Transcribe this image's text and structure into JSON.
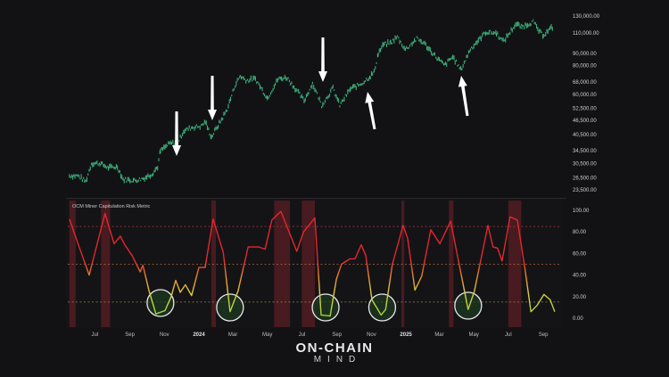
{
  "chart_data": [
    {
      "type": "line",
      "panel": "price",
      "scale": "log",
      "ylim": [
        23500,
        130000
      ],
      "xlim": [
        "2023-05-15",
        "2025-09-22"
      ],
      "y_ticks": [
        "130,000.00",
        "110,000.00",
        "90,000.00",
        "80,000.00",
        "68,000.00",
        "60,000.00",
        "52,500.00",
        "46,500.00",
        "40,500.00",
        "34,500.00",
        "30,500.00",
        "26,500.00",
        "23,500.00"
      ],
      "y_tick_values": [
        130000,
        110000,
        90000,
        80000,
        68000,
        60000,
        52500,
        46500,
        40500,
        34500,
        30500,
        26500,
        23500
      ],
      "color": "#3fae7a",
      "points": [
        [
          "2023-05-17",
          27000
        ],
        [
          "2023-06-01",
          27000
        ],
        [
          "2023-06-15",
          25500
        ],
        [
          "2023-06-25",
          30500
        ],
        [
          "2023-07-10",
          30500
        ],
        [
          "2023-07-25",
          29200
        ],
        [
          "2023-08-10",
          29500
        ],
        [
          "2023-08-20",
          26000
        ],
        [
          "2023-09-10",
          25800
        ],
        [
          "2023-09-25",
          26300
        ],
        [
          "2023-10-10",
          27500
        ],
        [
          "2023-10-20",
          29500
        ],
        [
          "2023-10-25",
          34500
        ],
        [
          "2023-11-10",
          37000
        ],
        [
          "2023-11-25",
          37500
        ],
        [
          "2023-12-05",
          42000
        ],
        [
          "2023-12-20",
          43500
        ],
        [
          "2024-01-05",
          44000
        ],
        [
          "2024-01-12",
          46000
        ],
        [
          "2024-01-23",
          39500
        ],
        [
          "2024-02-10",
          47000
        ],
        [
          "2024-02-20",
          52000
        ],
        [
          "2024-03-05",
          66000
        ],
        [
          "2024-03-14",
          72000
        ],
        [
          "2024-03-25",
          69000
        ],
        [
          "2024-04-10",
          70000
        ],
        [
          "2024-04-20",
          64000
        ],
        [
          "2024-05-01",
          58000
        ],
        [
          "2024-05-20",
          70000
        ],
        [
          "2024-06-05",
          71000
        ],
        [
          "2024-06-25",
          61000
        ],
        [
          "2024-07-05",
          56500
        ],
        [
          "2024-07-20",
          67000
        ],
        [
          "2024-08-05",
          54000
        ],
        [
          "2024-08-25",
          64000
        ],
        [
          "2024-09-06",
          54000
        ],
        [
          "2024-09-25",
          63500
        ],
        [
          "2024-10-15",
          67000
        ],
        [
          "2024-10-30",
          72000
        ],
        [
          "2024-11-06",
          75000
        ],
        [
          "2024-11-13",
          90000
        ],
        [
          "2024-11-22",
          98000
        ],
        [
          "2024-12-05",
          100000
        ],
        [
          "2024-12-17",
          106000
        ],
        [
          "2024-12-31",
          93500
        ],
        [
          "2025-01-20",
          104000
        ],
        [
          "2025-02-01",
          100000
        ],
        [
          "2025-02-25",
          86000
        ],
        [
          "2025-03-10",
          80000
        ],
        [
          "2025-03-25",
          87000
        ],
        [
          "2025-04-08",
          76500
        ],
        [
          "2025-04-25",
          94000
        ],
        [
          "2025-05-10",
          103000
        ],
        [
          "2025-05-22",
          111000
        ],
        [
          "2025-06-10",
          110000
        ],
        [
          "2025-06-22",
          101000
        ],
        [
          "2025-07-14",
          120000
        ],
        [
          "2025-07-25",
          117000
        ],
        [
          "2025-08-14",
          123000
        ],
        [
          "2025-08-25",
          111000
        ],
        [
          "2025-09-01",
          108000
        ],
        [
          "2025-09-18",
          117000
        ]
      ],
      "annotations": {
        "arrows": 5,
        "color": "#ffffff"
      }
    },
    {
      "type": "line",
      "panel": "metric",
      "title": "OCM Miner Capitulation Risk Metric",
      "ylim": [
        0,
        100
      ],
      "y_ticks": [
        "100.00",
        "80.00",
        "60.00",
        "40.00",
        "20.00",
        "0.00"
      ],
      "y_tick_values": [
        100,
        80,
        60,
        40,
        20,
        0
      ],
      "thresholds": [
        {
          "value": 85,
          "color": "#b0353a"
        },
        {
          "value": 50,
          "color": "#b06a3a"
        },
        {
          "value": 15,
          "color": "#8a8a55"
        }
      ],
      "colors": {
        "high": "#e3262c",
        "mid": "#ea8a2a",
        "low_mid": "#d9d23a",
        "low": "#9fd23a"
      },
      "x_ticks": [
        {
          "label": "Jul",
          "date": "2023-07-01"
        },
        {
          "label": "Sep",
          "date": "2023-09-01"
        },
        {
          "label": "Nov",
          "date": "2023-11-01"
        },
        {
          "label": "2024",
          "date": "2024-01-01",
          "bold": true
        },
        {
          "label": "Mar",
          "date": "2024-03-01"
        },
        {
          "label": "May",
          "date": "2024-05-01"
        },
        {
          "label": "Jul",
          "date": "2024-07-01"
        },
        {
          "label": "Sep",
          "date": "2024-09-01"
        },
        {
          "label": "Nov",
          "date": "2024-11-01"
        },
        {
          "label": "2025",
          "date": "2025-01-01",
          "bold": true
        },
        {
          "label": "Mar",
          "date": "2025-03-01"
        },
        {
          "label": "May",
          "date": "2025-05-01"
        },
        {
          "label": "Jul",
          "date": "2025-07-01"
        },
        {
          "label": "Sep",
          "date": "2025-09-01"
        }
      ],
      "points": [
        [
          "2023-05-17",
          92
        ],
        [
          "2023-06-02",
          68
        ],
        [
          "2023-06-21",
          40
        ],
        [
          "2023-07-19",
          97
        ],
        [
          "2023-08-04",
          69
        ],
        [
          "2023-08-15",
          76
        ],
        [
          "2023-08-23",
          68
        ],
        [
          "2023-09-05",
          58
        ],
        [
          "2023-09-19",
          43
        ],
        [
          "2023-09-24",
          49
        ],
        [
          "2023-10-05",
          25
        ],
        [
          "2023-10-17",
          4
        ],
        [
          "2023-11-02",
          7
        ],
        [
          "2023-11-13",
          20
        ],
        [
          "2023-11-21",
          35
        ],
        [
          "2023-11-29",
          24
        ],
        [
          "2023-12-08",
          31
        ],
        [
          "2023-12-19",
          21
        ],
        [
          "2024-01-01",
          47
        ],
        [
          "2024-01-12",
          47
        ],
        [
          "2024-01-26",
          92
        ],
        [
          "2024-02-13",
          61
        ],
        [
          "2024-02-25",
          6
        ],
        [
          "2024-03-10",
          25
        ],
        [
          "2024-03-28",
          66
        ],
        [
          "2024-04-16",
          66
        ],
        [
          "2024-04-27",
          64
        ],
        [
          "2024-05-09",
          91
        ],
        [
          "2024-05-25",
          99
        ],
        [
          "2024-06-13",
          74
        ],
        [
          "2024-06-22",
          62
        ],
        [
          "2024-07-04",
          80
        ],
        [
          "2024-07-24",
          93
        ],
        [
          "2024-08-04",
          3
        ],
        [
          "2024-08-20",
          2
        ],
        [
          "2024-08-31",
          36
        ],
        [
          "2024-09-09",
          50
        ],
        [
          "2024-09-24",
          55
        ],
        [
          "2024-10-03",
          55
        ],
        [
          "2024-10-14",
          68
        ],
        [
          "2024-10-22",
          58
        ],
        [
          "2024-11-02",
          17
        ],
        [
          "2024-11-18",
          3
        ],
        [
          "2024-11-26",
          8
        ],
        [
          "2024-12-08",
          50
        ],
        [
          "2024-12-27",
          86
        ],
        [
          "2025-01-04",
          74
        ],
        [
          "2025-01-17",
          26
        ],
        [
          "2025-01-29",
          39
        ],
        [
          "2025-02-14",
          82
        ],
        [
          "2025-03-02",
          69
        ],
        [
          "2025-03-21",
          90
        ],
        [
          "2025-04-02",
          58
        ],
        [
          "2025-04-21",
          8
        ],
        [
          "2025-05-02",
          25
        ],
        [
          "2025-05-26",
          86
        ],
        [
          "2025-06-04",
          66
        ],
        [
          "2025-06-12",
          65
        ],
        [
          "2025-06-20",
          53
        ],
        [
          "2025-07-04",
          94
        ],
        [
          "2025-07-17",
          91
        ],
        [
          "2025-07-30",
          47
        ],
        [
          "2025-08-10",
          6
        ],
        [
          "2025-08-21",
          12
        ],
        [
          "2025-09-02",
          22
        ],
        [
          "2025-09-13",
          17
        ],
        [
          "2025-09-21",
          6
        ]
      ],
      "capitulation_zones": [
        [
          "2023-05-17",
          "2023-05-28"
        ],
        [
          "2023-07-12",
          "2023-07-28"
        ],
        [
          "2024-01-23",
          "2024-01-31"
        ],
        [
          "2024-05-13",
          "2024-06-10"
        ],
        [
          "2024-07-01",
          "2024-07-24"
        ],
        [
          "2024-12-24",
          "2024-12-29"
        ],
        [
          "2025-03-18",
          "2025-03-26"
        ],
        [
          "2025-07-01",
          "2025-07-24"
        ]
      ],
      "zone_color": "#5a1e24",
      "highlighted_bottoms": [
        "2023-10-25",
        "2024-02-25",
        "2024-08-12",
        "2024-11-20",
        "2025-04-21"
      ]
    }
  ],
  "branding": {
    "line1": "ON-CHAIN",
    "line2": "MIND"
  }
}
